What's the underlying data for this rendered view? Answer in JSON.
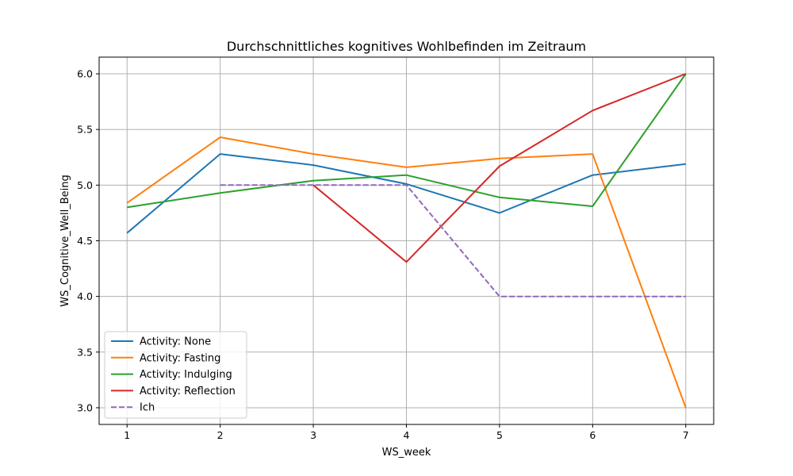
{
  "chart_data": {
    "type": "line",
    "title": "Durchschnittliches kognitives Wohlbefinden im Zeitraum",
    "xlabel": "WS_week",
    "ylabel": "WS_Cognitive_Well_Being",
    "x_ticks": [
      1,
      2,
      3,
      4,
      5,
      6,
      7
    ],
    "y_ticks": [
      "3.0",
      "3.5",
      "4.0",
      "4.5",
      "5.0",
      "5.5",
      "6.0"
    ],
    "xlim": [
      0.7,
      7.3
    ],
    "ylim": [
      2.85,
      6.15
    ],
    "grid": true,
    "legend_position": "lower-left",
    "series": [
      {
        "name": "Activity: None",
        "color": "#1f77b4",
        "style": "solid",
        "x": [
          1,
          2,
          3,
          4,
          5,
          6,
          7
        ],
        "y": [
          4.57,
          5.28,
          5.18,
          5.01,
          4.75,
          5.09,
          5.19
        ]
      },
      {
        "name": "Activity: Fasting",
        "color": "#ff7f0e",
        "style": "solid",
        "x": [
          1,
          2,
          3,
          4,
          5,
          6,
          7
        ],
        "y": [
          4.84,
          5.43,
          5.28,
          5.16,
          5.24,
          5.28,
          3.0
        ]
      },
      {
        "name": "Activity: Indulging",
        "color": "#2ca02c",
        "style": "solid",
        "x": [
          1,
          2,
          3,
          4,
          5,
          6,
          7
        ],
        "y": [
          4.8,
          4.93,
          5.04,
          5.09,
          4.89,
          4.81,
          6.0
        ]
      },
      {
        "name": "Activity: Reflection",
        "color": "#d62728",
        "style": "solid",
        "x": [
          3,
          4,
          5,
          6,
          7
        ],
        "y": [
          5.0,
          4.31,
          5.17,
          5.67,
          6.0
        ]
      },
      {
        "name": "Ich",
        "color": "#9467bd",
        "style": "dashed",
        "x": [
          2,
          3,
          4,
          5,
          6,
          7
        ],
        "y": [
          5.0,
          5.0,
          5.0,
          4.0,
          4.0,
          4.0
        ]
      }
    ]
  }
}
